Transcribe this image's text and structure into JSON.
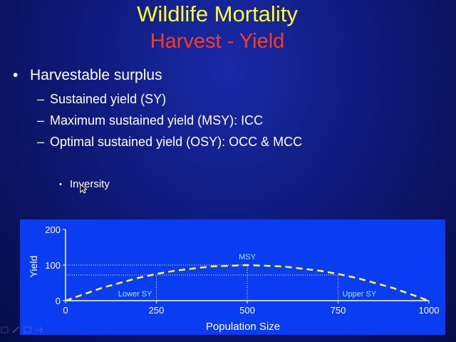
{
  "slide": {
    "title": "Wildlife Mortality",
    "subtitle": "Harvest - Yield",
    "bullet": "Harvestable surplus",
    "subbullets": [
      "Sustained yield (SY)",
      "Maximum sustained yield (MSY): ICC",
      "Optimal sustained yield (OSY): OCC & MCC"
    ],
    "sub_sub_bullet": "Inversity"
  },
  "colors": {
    "title": "#ffff33",
    "subtitle": "#ff3b1c",
    "chart_bg": "#0a3cf2",
    "curve": "#ffff33"
  },
  "chart_data": {
    "type": "line",
    "title": "",
    "xlabel": "Population Size",
    "ylabel": "Yield",
    "xlim": [
      0,
      1000
    ],
    "ylim": [
      0,
      200
    ],
    "x_ticks": [
      "0",
      "250",
      "500",
      "750",
      "1000"
    ],
    "y_ticks": [
      "0",
      "100",
      "200"
    ],
    "grid": false,
    "series": [
      {
        "style": "dashed",
        "x": [
          0,
          100,
          200,
          250,
          300,
          400,
          500,
          600,
          700,
          750,
          800,
          900,
          1000
        ],
        "y": [
          0,
          36,
          64,
          75,
          84,
          96,
          100,
          96,
          84,
          75,
          64,
          36,
          0
        ]
      }
    ],
    "reference_lines": [
      {
        "kind": "horizontal",
        "y": 100,
        "x_from": 0,
        "x_to": 500
      },
      {
        "kind": "horizontal",
        "y": 72,
        "x_from": 0,
        "x_to": 750
      },
      {
        "kind": "vertical",
        "x": 250,
        "y_from": 0,
        "y_to": 72
      },
      {
        "kind": "vertical",
        "x": 500,
        "y_from": 0,
        "y_to": 100
      },
      {
        "kind": "vertical",
        "x": 750,
        "y_from": 0,
        "y_to": 72
      }
    ],
    "annotations": [
      {
        "text": "MSY",
        "x": 500,
        "y": 100
      },
      {
        "text": "Lower SY",
        "x": 250,
        "y": 0
      },
      {
        "text": "Upper SY",
        "x": 750,
        "y": 0
      }
    ]
  }
}
